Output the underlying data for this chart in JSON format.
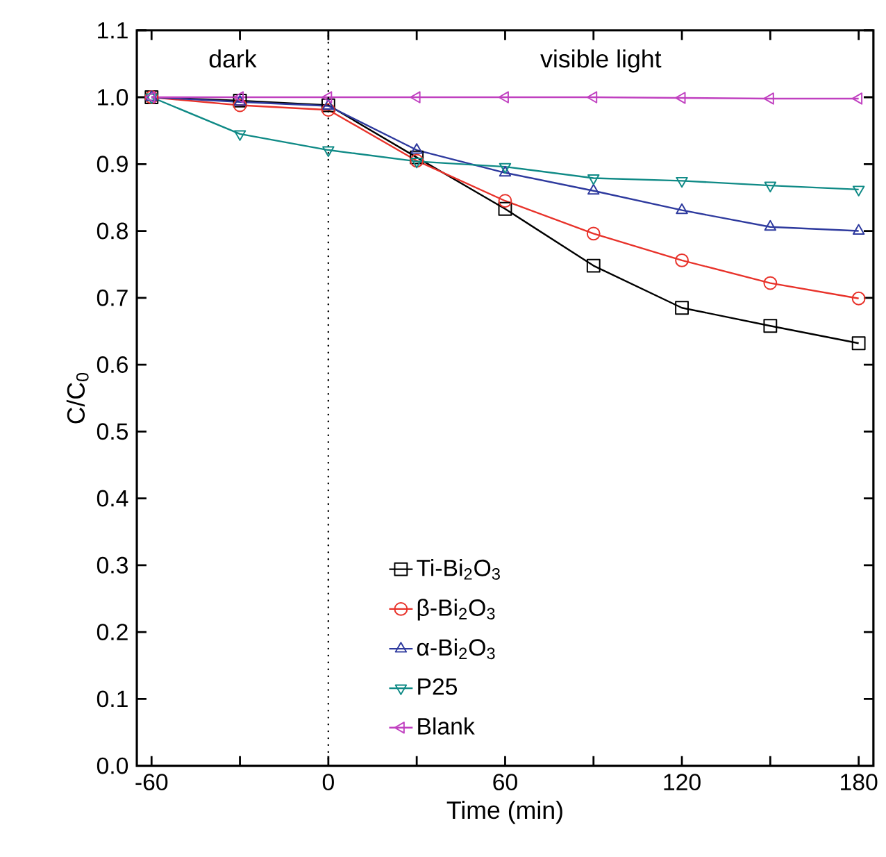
{
  "chart_data": {
    "type": "line",
    "xlabel": "Time (min)",
    "ylabel": "C/C$_{0}$",
    "x": [
      -60,
      -30,
      0,
      30,
      60,
      90,
      120,
      150,
      180
    ],
    "xlim": [
      -65,
      185
    ],
    "xticks": [
      -60,
      {
        "value": -30,
        "label": null
      },
      0,
      {
        "value": 30,
        "label": null
      },
      60,
      {
        "value": 90,
        "label": null
      },
      120,
      {
        "value": 150,
        "label": null
      },
      180
    ],
    "ylim": [
      0,
      1.1
    ],
    "yticks": [
      {
        "value": 0,
        "label": "0.0"
      },
      0.1,
      0.2,
      0.3,
      0.4,
      0.5,
      0.6,
      0.7,
      0.8,
      0.9,
      {
        "value": 1,
        "label": "1.0"
      },
      1.1
    ],
    "series": [
      {
        "name": "Ti-Bi$_{2}$O$_{3}$",
        "color": "#000000",
        "marker": "square",
        "values": [
          1.0,
          0.995,
          0.988,
          0.91,
          0.833,
          0.748,
          0.685,
          0.658,
          0.632
        ]
      },
      {
        "name": "β-Bi$_{2}$O$_{3}$",
        "color": "#e8322a",
        "marker": "circle",
        "values": [
          1.0,
          0.988,
          0.981,
          0.905,
          0.845,
          0.796,
          0.756,
          0.722,
          0.699
        ]
      },
      {
        "name": "α-Bi$_{2}$O$_{3}$",
        "color": "#2e3a9e",
        "marker": "triangle",
        "values": [
          1.0,
          0.993,
          0.987,
          0.921,
          0.887,
          0.86,
          0.831,
          0.806,
          0.8
        ]
      },
      {
        "name": "P25",
        "color": "#0f8a86",
        "marker": "triangle-down",
        "values": [
          1.0,
          0.945,
          0.921,
          0.904,
          0.896,
          0.879,
          0.875,
          0.868,
          0.862
        ]
      },
      {
        "name": "Blank",
        "color": "#c040c0",
        "marker": "triangle-left",
        "values": [
          1.0,
          1.0,
          1.0,
          1.0,
          1.0,
          1.0,
          0.999,
          0.998,
          0.998
        ]
      }
    ],
    "ref_lines": [
      {
        "axis": "x",
        "value": 0,
        "line_style": "dotted",
        "color": "#000000"
      }
    ],
    "annotations": [
      "dark",
      "visible light"
    ],
    "legend": "bottom",
    "grid": false,
    "line_style": "solid"
  }
}
